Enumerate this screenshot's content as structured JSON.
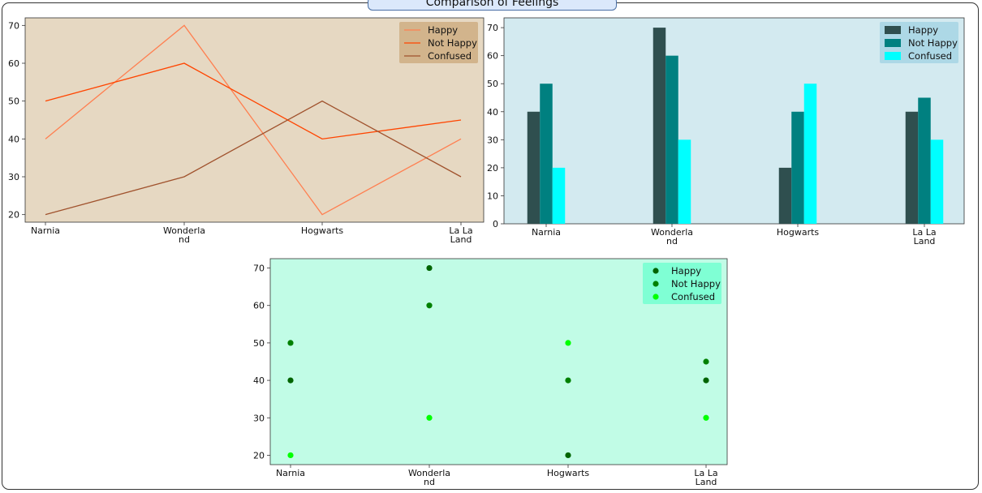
{
  "figure": {
    "title": "Comparison of Feelings"
  },
  "chart_data": [
    {
      "type": "line",
      "categories": [
        "Narnia",
        "Wonderland",
        "Hogwarts",
        "La La Land"
      ],
      "category_ticks": [
        [
          "Narnia"
        ],
        [
          "Wonderla",
          "nd"
        ],
        [
          "Hogwarts"
        ],
        [
          "La La",
          "Land"
        ]
      ],
      "series": [
        {
          "name": "Happy",
          "values": [
            40,
            70,
            20,
            40
          ],
          "color": "#ff7f50"
        },
        {
          "name": "Not Happy",
          "values": [
            50,
            60,
            40,
            45
          ],
          "color": "#ff4500"
        },
        {
          "name": "Confused",
          "values": [
            20,
            30,
            50,
            30
          ],
          "color": "#a0522d"
        }
      ],
      "yticks": [
        20,
        30,
        40,
        50,
        60,
        70
      ],
      "ylim": [
        18,
        72
      ],
      "grid": false,
      "legend": "top-right",
      "background": "#e6d8c2",
      "legend_background": "#d2b48c"
    },
    {
      "type": "bar",
      "categories": [
        "Narnia",
        "Wonderland",
        "Hogwarts",
        "La La Land"
      ],
      "category_ticks": [
        [
          "Narnia"
        ],
        [
          "Wonderla",
          "nd"
        ],
        [
          "Hogwarts"
        ],
        [
          "La La",
          "Land"
        ]
      ],
      "series": [
        {
          "name": "Happy",
          "values": [
            40,
            70,
            20,
            40
          ],
          "color": "#2f4f4f"
        },
        {
          "name": "Not Happy",
          "values": [
            50,
            60,
            40,
            45
          ],
          "color": "#008080"
        },
        {
          "name": "Confused",
          "values": [
            20,
            30,
            50,
            30
          ],
          "color": "#00ffff"
        }
      ],
      "yticks": [
        0,
        10,
        20,
        30,
        40,
        50,
        60,
        70
      ],
      "ylim": [
        0,
        73.5
      ],
      "grid": false,
      "legend": "top-right",
      "background": "#d3eaf0",
      "legend_background": "#add8e6"
    },
    {
      "type": "scatter",
      "categories": [
        "Narnia",
        "Wonderland",
        "Hogwarts",
        "La La Land"
      ],
      "category_ticks": [
        [
          "Narnia"
        ],
        [
          "Wonderla",
          "nd"
        ],
        [
          "Hogwarts"
        ],
        [
          "La La",
          "Land"
        ]
      ],
      "series": [
        {
          "name": "Happy",
          "values": [
            40,
            70,
            20,
            40
          ],
          "color": "#006400"
        },
        {
          "name": "Not Happy",
          "values": [
            50,
            60,
            40,
            45
          ],
          "color": "#008000"
        },
        {
          "name": "Confused",
          "values": [
            20,
            30,
            50,
            30
          ],
          "color": "#00ff00"
        }
      ],
      "yticks": [
        20,
        30,
        40,
        50,
        60,
        70
      ],
      "ylim": [
        17.5,
        72.5
      ],
      "grid": false,
      "legend": "top-right",
      "background": "#c1fce6",
      "legend_background": "#7fffd4"
    }
  ]
}
